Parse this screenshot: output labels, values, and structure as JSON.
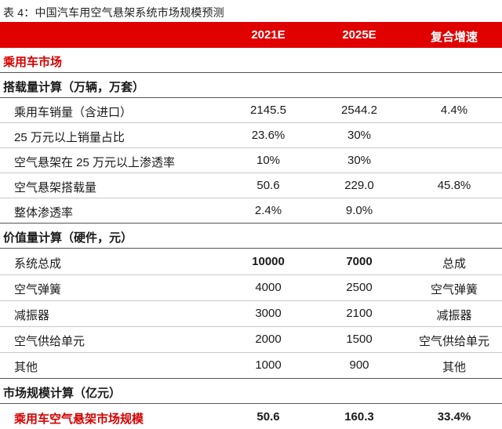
{
  "caption": "表 4：中国汽车用空气悬架系统市场规模预测",
  "header": {
    "col1": "2021E",
    "col2": "2025E",
    "col3": "复合增速"
  },
  "section_passenger": "乘用车市场",
  "section_volume": "搭载量计算（万辆，万套）",
  "volume_rows": [
    {
      "label": "乘用车销量（含进口）",
      "v2021": "2145.5",
      "v2025": "2544.2",
      "cagr": "4.4%"
    },
    {
      "label": "25 万元以上销量占比",
      "v2021": "23.6%",
      "v2025": "30%",
      "cagr": ""
    },
    {
      "label": "空气悬架在 25 万元以上渗透率",
      "v2021": "10%",
      "v2025": "30%",
      "cagr": ""
    },
    {
      "label": "空气悬架搭载量",
      "v2021": "50.6",
      "v2025": "229.0",
      "cagr": "45.8%"
    },
    {
      "label": "整体渗透率",
      "v2021": "2.4%",
      "v2025": "9.0%",
      "cagr": ""
    }
  ],
  "section_value": "价值量计算（硬件，元）",
  "value_rows": [
    {
      "label": "系统总成",
      "v2021": "10000",
      "v2025": "7000",
      "cagr": "总成"
    },
    {
      "label": "空气弹簧",
      "v2021": "4000",
      "v2025": "2500",
      "cagr": "空气弹簧"
    },
    {
      "label": "减振器",
      "v2021": "3000",
      "v2025": "2100",
      "cagr": "减振器"
    },
    {
      "label": "空气供给单元",
      "v2021": "2000",
      "v2025": "1500",
      "cagr": "空气供给单元"
    },
    {
      "label": "其他",
      "v2021": "1000",
      "v2025": "900",
      "cagr": "其他"
    }
  ],
  "section_market": "市场规模计算（亿元）",
  "final_row": {
    "label": "乘用车空气悬架市场规模",
    "v2021": "50.6",
    "v2025": "160.3",
    "cagr": "33.4%"
  }
}
